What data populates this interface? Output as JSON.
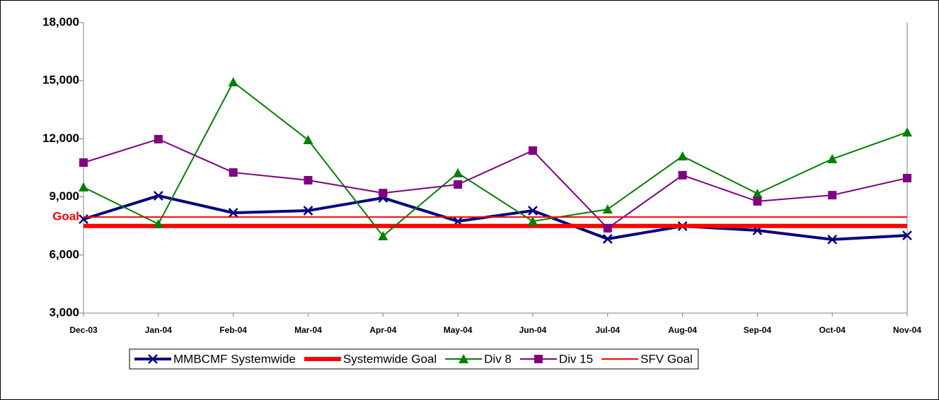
{
  "chart_data": {
    "type": "line",
    "categories": [
      "Dec-03",
      "Jan-04",
      "Feb-04",
      "Mar-04",
      "Apr-04",
      "May-04",
      "Jun-04",
      "Jul-04",
      "Aug-04",
      "Sep-04",
      "Oct-04",
      "Nov-04"
    ],
    "ylim": [
      3000,
      18000
    ],
    "yticks": [
      {
        "value": 3000,
        "label": "3,000"
      },
      {
        "value": 6000,
        "label": "6,000"
      },
      {
        "value": 9000,
        "label": "9,000"
      },
      {
        "value": 12000,
        "label": "12,000"
      },
      {
        "value": 15000,
        "label": "15,000"
      },
      {
        "value": 18000,
        "label": "18,000"
      }
    ],
    "goal_label": "Goal",
    "legend": "bottom",
    "series": [
      {
        "name": "MMBCMF Systemwide",
        "color": "#000080",
        "width": 4,
        "marker": "x",
        "values": [
          7850,
          9060,
          8180,
          8290,
          8950,
          7740,
          8290,
          6830,
          7490,
          7270,
          6800,
          7010
        ]
      },
      {
        "name": "Systemwide Goal",
        "color": "#ff0000",
        "width": 6,
        "marker": "none",
        "values": [
          7500,
          7500,
          7500,
          7500,
          7500,
          7500,
          7500,
          7500,
          7500,
          7500,
          7500,
          7500
        ]
      },
      {
        "name": "Div 8",
        "color": "#008000",
        "width": 2,
        "marker": "triangle",
        "values": [
          9500,
          7600,
          14930,
          11940,
          6980,
          10230,
          7740,
          8360,
          11100,
          9170,
          10960,
          12340
        ]
      },
      {
        "name": "Div 15",
        "color": "#800080",
        "width": 2,
        "marker": "square",
        "values": [
          10770,
          11980,
          10260,
          9860,
          9200,
          9640,
          11390,
          7380,
          10120,
          8770,
          9090,
          9970
        ]
      },
      {
        "name": "SFV  Goal",
        "color": "#ff0000",
        "width": 2,
        "marker": "none",
        "values": [
          7960,
          7960,
          7960,
          7960,
          7960,
          7960,
          7960,
          7960,
          7960,
          7960,
          7960,
          7960
        ]
      }
    ]
  }
}
